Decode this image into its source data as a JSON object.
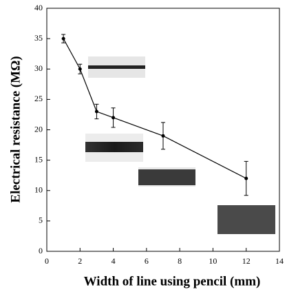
{
  "chart_data": {
    "type": "line",
    "xlabel": "Width of line using pencil (mm)",
    "ylabel": "Electrical resistance (MΩ)",
    "x": [
      1,
      2,
      3,
      4,
      7,
      12
    ],
    "series": [
      {
        "color": "#000000",
        "values": [
          35,
          30,
          23,
          22,
          19,
          12
        ],
        "errors": [
          0.7,
          0.8,
          1.2,
          1.6,
          2.2,
          2.8
        ]
      }
    ],
    "xlim": [
      0,
      14
    ],
    "xticks": [
      0,
      2,
      4,
      6,
      8,
      10,
      12,
      14
    ],
    "ylim": [
      0,
      40
    ],
    "yticks": [
      0,
      5,
      10,
      15,
      20,
      25,
      30,
      35,
      40
    ],
    "grid": false
  }
}
